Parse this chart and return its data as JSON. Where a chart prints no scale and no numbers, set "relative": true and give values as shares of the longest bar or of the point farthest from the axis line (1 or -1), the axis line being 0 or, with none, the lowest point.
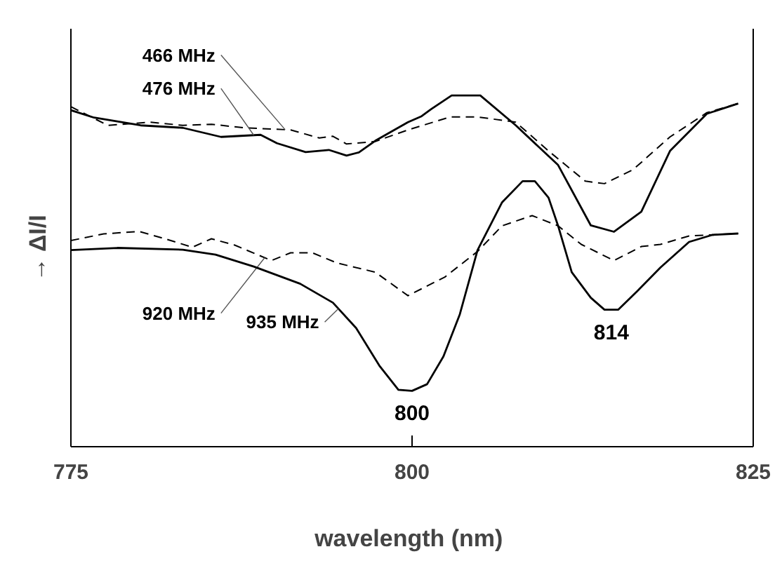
{
  "chart_data": {
    "type": "line",
    "relative": true,
    "xlabel": "wavelength  (nm)",
    "ylabel": "→    ΔI/I",
    "xlim": [
      775,
      825
    ],
    "xticks": [
      775,
      800,
      825
    ],
    "grid": false,
    "marker": "none",
    "series": [
      {
        "name": "466 MHz",
        "color": "#000000",
        "line_style": "dashed",
        "x": [
          775,
          777.7,
          780.8,
          783.2,
          785.3,
          787.7,
          791.1,
          793.2,
          794.2,
          795.2,
          797.3,
          799.7,
          802.8,
          804.8,
          807.6,
          810.0,
          812.7,
          814.1,
          816.2,
          818.9,
          821.6,
          823.9
        ],
        "values": [
          0.968,
          0.915,
          0.924,
          0.915,
          0.918,
          0.908,
          0.902,
          0.879,
          0.884,
          0.862,
          0.869,
          0.902,
          0.939,
          0.939,
          0.924,
          0.842,
          0.756,
          0.749,
          0.789,
          0.882,
          0.951,
          0.977
        ]
      },
      {
        "name": "476 MHz",
        "color": "#000000",
        "line_style": "solid",
        "x": [
          775,
          776.7,
          780.1,
          783.2,
          786.0,
          788.9,
          790.1,
          792.2,
          793.9,
          795.2,
          796.1,
          797.3,
          799.7,
          800.7,
          801.4,
          802.9,
          805.0,
          807.6,
          810.7,
          813.1,
          814.8,
          816.8,
          818.9,
          821.6,
          823.9
        ],
        "values": [
          0.958,
          0.937,
          0.915,
          0.908,
          0.882,
          0.888,
          0.864,
          0.839,
          0.845,
          0.829,
          0.838,
          0.871,
          0.924,
          0.941,
          0.961,
          1.0,
          1.0,
          0.915,
          0.802,
          0.63,
          0.612,
          0.669,
          0.842,
          0.948,
          0.977
        ]
      },
      {
        "name": "920 MHz",
        "color": "#000000",
        "line_style": "dashed",
        "x": [
          775,
          777.4,
          780.0,
          781.9,
          783.9,
          785.3,
          787.0,
          789.7,
          791.1,
          792.7,
          794.5,
          797.3,
          799.7,
          802.4,
          804.8,
          806.6,
          808.8,
          810.7,
          812.4,
          814.8,
          816.8,
          818.2,
          820.3,
          823.9
        ],
        "values": [
          0.587,
          0.606,
          0.613,
          0.592,
          0.568,
          0.592,
          0.574,
          0.53,
          0.552,
          0.552,
          0.523,
          0.497,
          0.43,
          0.483,
          0.556,
          0.629,
          0.658,
          0.629,
          0.576,
          0.53,
          0.57,
          0.576,
          0.6,
          0.607
        ]
      },
      {
        "name": "935 MHz",
        "color": "#000000",
        "line_style": "solid",
        "x": [
          775,
          778.4,
          783.2,
          785.6,
          788.4,
          791.8,
          794.2,
          795.9,
          797.6,
          799.0,
          800.0,
          801.1,
          802.3,
          803.5,
          804.8,
          806.6,
          808.1,
          809.0,
          810.0,
          810.7,
          811.7,
          813.1,
          814.1,
          815.1,
          816.5,
          818.2,
          820.3,
          822.0,
          823.9
        ],
        "values": [
          0.56,
          0.566,
          0.561,
          0.547,
          0.513,
          0.464,
          0.41,
          0.338,
          0.231,
          0.162,
          0.159,
          0.178,
          0.257,
          0.377,
          0.56,
          0.696,
          0.756,
          0.756,
          0.709,
          0.629,
          0.497,
          0.424,
          0.39,
          0.39,
          0.443,
          0.51,
          0.583,
          0.603,
          0.607
        ]
      }
    ],
    "annotations": [
      {
        "text": "800",
        "x": 800.0,
        "y": 0.159
      },
      {
        "text": "814",
        "x": 814.6,
        "y": 0.39
      }
    ]
  }
}
